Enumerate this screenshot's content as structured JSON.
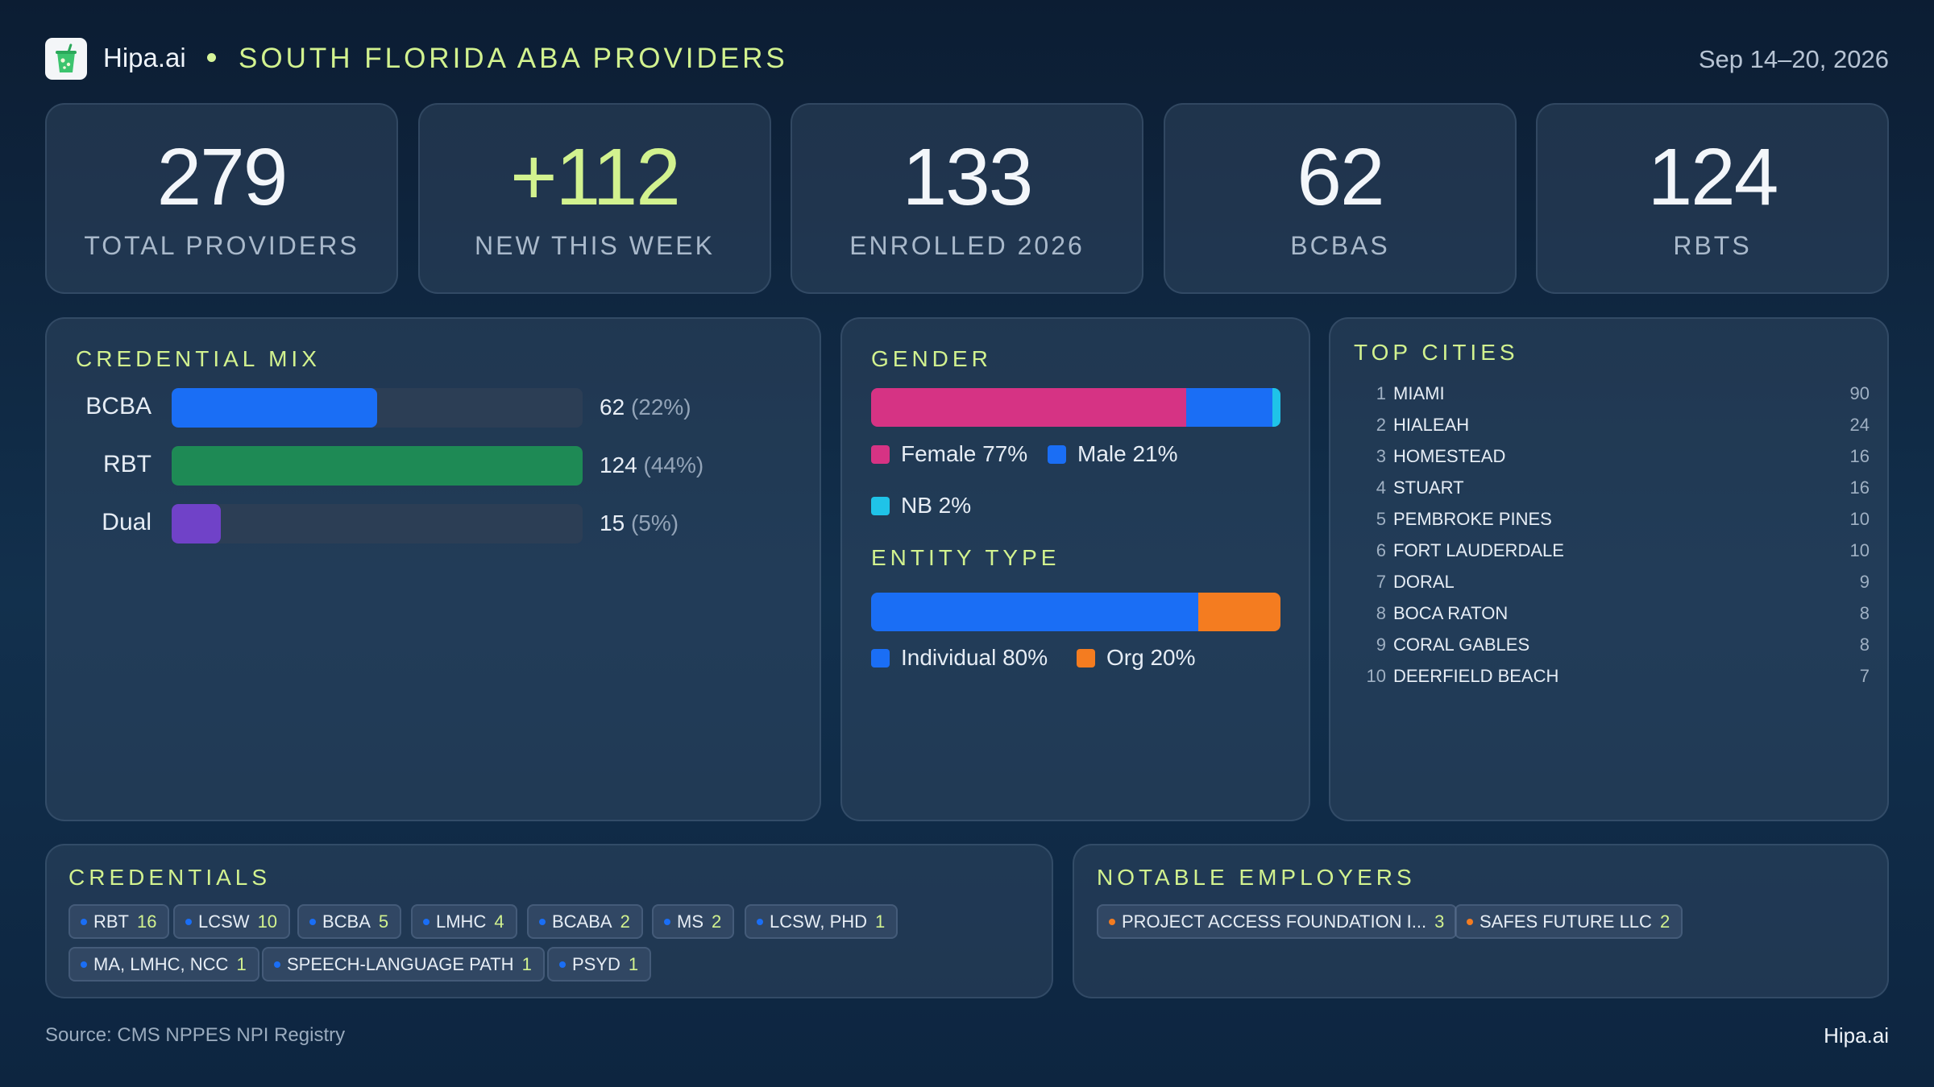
{
  "header": {
    "brand": "Hipa.ai",
    "title": "SOUTH FLORIDA ABA PROVIDERS",
    "date_range": "Sep 14–20, 2026"
  },
  "stats": [
    {
      "value": "279",
      "label": "TOTAL  PROVIDERS",
      "accent": false
    },
    {
      "value": "+112",
      "label": "NEW THIS WEEK",
      "accent": true
    },
    {
      "value": "133",
      "label": "ENROLLED 2026",
      "accent": false
    },
    {
      "value": "62",
      "label": "BCBAS",
      "accent": false
    },
    {
      "value": "124",
      "label": "RBTS",
      "accent": false
    }
  ],
  "credential_mix": {
    "title": "CREDENTIAL MIX",
    "rows": [
      {
        "label": "BCBA",
        "count": "62",
        "pct": "(22%)",
        "fraction": 0.5,
        "color": "#1a6ef5"
      },
      {
        "label": "RBT",
        "count": "124",
        "pct": "(44%)",
        "fraction": 1.0,
        "color": "#1e8a55"
      },
      {
        "label": "Dual",
        "count": "15",
        "pct": "(5%)",
        "fraction": 0.12,
        "color": "#7042c8"
      }
    ]
  },
  "gender": {
    "title": "GENDER",
    "segments": [
      {
        "label": "Female 77%",
        "share": 77,
        "color": "#d63384"
      },
      {
        "label": "Male 21%",
        "share": 21,
        "color": "#1a6ef5"
      },
      {
        "label": "NB 2%",
        "share": 2,
        "color": "#1fc3e8"
      }
    ]
  },
  "entity_type": {
    "title": "ENTITY TYPE",
    "segments": [
      {
        "label": "Individual 80%",
        "share": 80,
        "color": "#1a6ef5"
      },
      {
        "label": "Org 20%",
        "share": 20,
        "color": "#f47c20"
      }
    ]
  },
  "top_cities": {
    "title": "TOP CITIES",
    "items": [
      {
        "rank": "1",
        "name": "MIAMI",
        "count": "90"
      },
      {
        "rank": "2",
        "name": "HIALEAH",
        "count": "24"
      },
      {
        "rank": "3",
        "name": "HOMESTEAD",
        "count": "16"
      },
      {
        "rank": "4",
        "name": "STUART",
        "count": "16"
      },
      {
        "rank": "5",
        "name": "PEMBROKE PINES",
        "count": "10"
      },
      {
        "rank": "6",
        "name": "FORT LAUDERDALE",
        "count": "10"
      },
      {
        "rank": "7",
        "name": "DORAL",
        "count": "9"
      },
      {
        "rank": "8",
        "name": "BOCA RATON",
        "count": "8"
      },
      {
        "rank": "9",
        "name": "CORAL GABLES",
        "count": "8"
      },
      {
        "rank": "10",
        "name": "DEERFIELD BEACH",
        "count": "7"
      }
    ]
  },
  "credentials": {
    "title": "CREDENTIALS",
    "dot_color": "#1a6ef5",
    "chips": [
      {
        "label": "RBT",
        "count": "16"
      },
      {
        "label": "LCSW",
        "count": "10"
      },
      {
        "label": "BCBA",
        "count": "5"
      },
      {
        "label": "LMHC",
        "count": "4"
      },
      {
        "label": "BCABA",
        "count": "2"
      },
      {
        "label": "MS",
        "count": "2"
      },
      {
        "label": "LCSW, PHD",
        "count": "1"
      },
      {
        "label": "MA, LMHC, NCC",
        "count": "1"
      },
      {
        "label": "SPEECH-LANGUAGE PATH",
        "count": "1"
      },
      {
        "label": "PSYD",
        "count": "1"
      }
    ]
  },
  "employers": {
    "title": "NOTABLE  EMPLOYERS",
    "dot_color": "#f47c20",
    "chips": [
      {
        "label": "PROJECT ACCESS FOUNDATION I...",
        "count": "3"
      },
      {
        "label": "SAFES FUTURE LLC",
        "count": "2"
      }
    ]
  },
  "footer": {
    "source": "Source: CMS NPPES NPI Registry",
    "brand": "Hipa.ai"
  },
  "colors": {
    "accent": "#d2f28f",
    "background": "#0c1d33"
  },
  "icons": {
    "logo": "green-drink-cup-icon"
  }
}
